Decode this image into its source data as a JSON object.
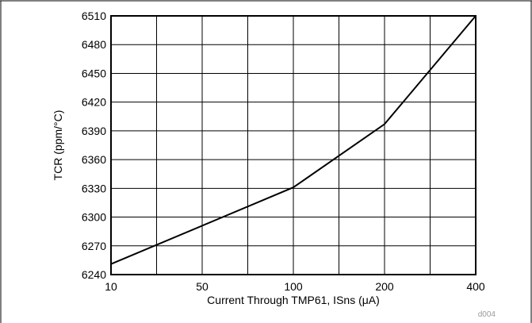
{
  "chart_data": {
    "type": "line",
    "xlabel": "Current Through TMP61, ISns (μA)",
    "ylabel": "TCR (ppm/°C)",
    "x_ticks": [
      "10",
      "50",
      "100",
      "200",
      "400"
    ],
    "x_scale": "log-like (ticks evenly spaced across the grid)",
    "y_ticks": [
      6240,
      6270,
      6300,
      6330,
      6360,
      6390,
      6420,
      6450,
      6480,
      6510
    ],
    "ylim": [
      6240,
      6510
    ],
    "grid": true,
    "legend": "none",
    "figure_code": "d004",
    "series": [
      {
        "points": [
          {
            "x": 10,
            "y": 6251
          },
          {
            "x": 100,
            "y": 6331
          },
          {
            "x": 200,
            "y": 6397
          },
          {
            "x": 400,
            "y": 6510
          }
        ]
      }
    ],
    "colors": {
      "line": "#000000",
      "grid": "#000000",
      "frame": "#000000"
    }
  }
}
